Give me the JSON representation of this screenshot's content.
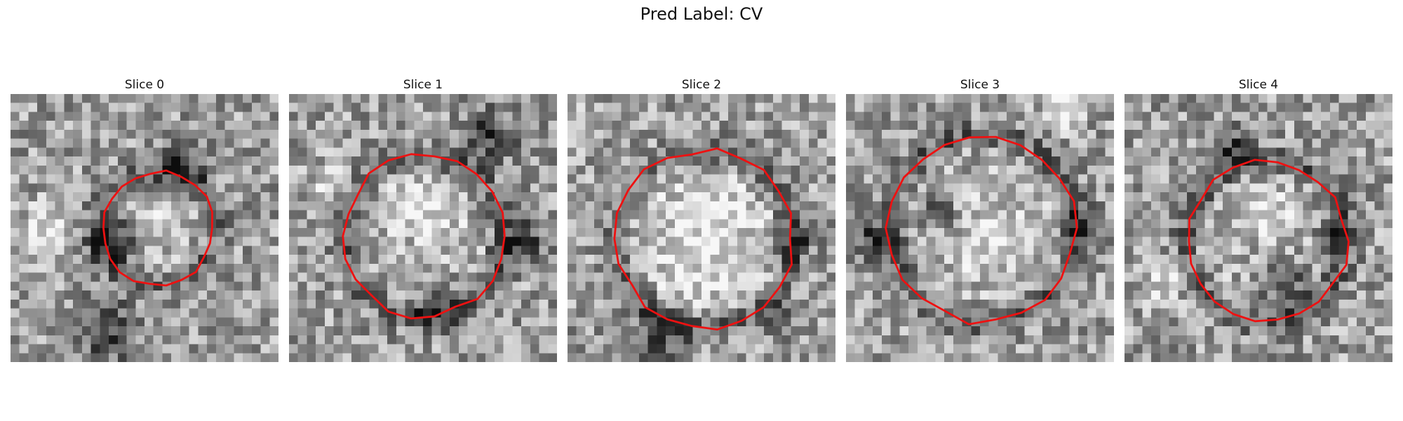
{
  "figure": {
    "title": "Pred Label: CV"
  },
  "panels": [
    {
      "title": "Slice 0",
      "seed": 11,
      "center": [
        0.55,
        0.5
      ],
      "radius": 0.21,
      "dark_blobs": [
        [
          0.65,
          0.26,
          0.1
        ],
        [
          0.35,
          0.88,
          0.12
        ],
        [
          0.38,
          0.55,
          0.1
        ]
      ],
      "bright_blobs": [
        [
          0.58,
          0.47,
          0.06
        ],
        [
          0.12,
          0.5,
          0.09
        ]
      ]
    },
    {
      "title": "Slice 1",
      "seed": 23,
      "center": [
        0.5,
        0.53
      ],
      "radius": 0.3,
      "dark_blobs": [
        [
          0.55,
          0.78,
          0.08
        ],
        [
          0.75,
          0.15,
          0.1
        ],
        [
          0.88,
          0.55,
          0.08
        ]
      ],
      "bright_blobs": [
        [
          0.5,
          0.42,
          0.12
        ],
        [
          0.15,
          0.35,
          0.08
        ]
      ]
    },
    {
      "title": "Slice 2",
      "seed": 37,
      "center": [
        0.51,
        0.54
      ],
      "radius": 0.33,
      "dark_blobs": [
        [
          0.35,
          0.9,
          0.1
        ],
        [
          0.85,
          0.55,
          0.06
        ],
        [
          0.78,
          0.85,
          0.06
        ]
      ],
      "bright_blobs": [
        [
          0.5,
          0.55,
          0.22
        ],
        [
          0.05,
          0.1,
          0.08
        ]
      ]
    },
    {
      "title": "Slice 3",
      "seed": 51,
      "center": [
        0.51,
        0.5
      ],
      "radius": 0.35,
      "dark_blobs": [
        [
          0.1,
          0.55,
          0.08
        ],
        [
          0.88,
          0.5,
          0.08
        ],
        [
          0.35,
          0.45,
          0.06
        ]
      ],
      "bright_blobs": [
        [
          0.55,
          0.55,
          0.12
        ],
        [
          0.8,
          0.05,
          0.08
        ]
      ]
    },
    {
      "title": "Slice 4",
      "seed": 67,
      "center": [
        0.53,
        0.55
      ],
      "radius": 0.3,
      "dark_blobs": [
        [
          0.6,
          0.72,
          0.1
        ],
        [
          0.78,
          0.52,
          0.06
        ],
        [
          0.4,
          0.2,
          0.08
        ]
      ],
      "bright_blobs": [
        [
          0.55,
          0.45,
          0.1
        ],
        [
          0.15,
          0.7,
          0.08
        ]
      ]
    }
  ],
  "colors": {
    "contour": "#ee1111"
  }
}
